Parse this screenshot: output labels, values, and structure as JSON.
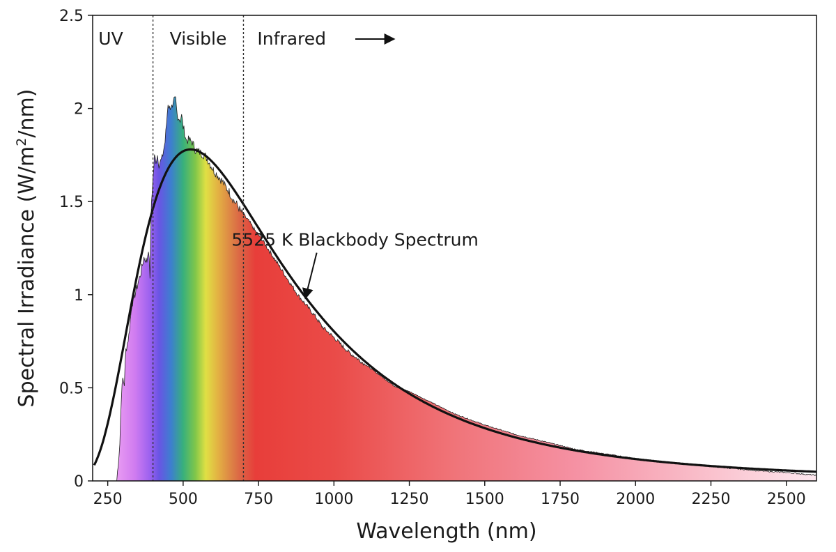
{
  "chart_data": {
    "type": "area",
    "xlabel": "Wavelength (nm)",
    "ylabel_main": "Spectral Irradiance (W/m",
    "ylabel_sup": "2",
    "ylabel_end": "/nm)",
    "xlim": [
      200,
      2600
    ],
    "ylim": [
      0,
      2.5
    ],
    "x_ticks": [
      250,
      500,
      750,
      1000,
      1250,
      1500,
      1750,
      2000,
      2250,
      2500
    ],
    "y_ticks": [
      0,
      0.5,
      1,
      1.5,
      2,
      2.5
    ],
    "y_tick_labels": [
      "0",
      "0.5",
      "1",
      "1.5",
      "2",
      "2.5"
    ],
    "regions": [
      {
        "label": "UV",
        "x": 260
      },
      {
        "label": "Visible",
        "x": 550
      },
      {
        "label": "Infrared",
        "x": 860
      }
    ],
    "dividers": [
      400,
      700
    ],
    "grid": false,
    "blackbody": {
      "label": "5525 K Blackbody Spectrum",
      "temperature_K": 5525,
      "peak_value": 1.78,
      "label_at": [
        1070,
        1.3
      ],
      "arrow_to": [
        905,
        0.98
      ]
    },
    "solar_spectrum": {
      "x": [
        280,
        290,
        295,
        300,
        305,
        310,
        320,
        330,
        340,
        350,
        360,
        370,
        380,
        385,
        390,
        395,
        400,
        405,
        410,
        415,
        420,
        430,
        440,
        445,
        450,
        455,
        460,
        465,
        470,
        475,
        480,
        485,
        490,
        495,
        500,
        505,
        510,
        520,
        530,
        540,
        550,
        560,
        570,
        580,
        590,
        600,
        610,
        620,
        630,
        640,
        650,
        660,
        670,
        680,
        690,
        700,
        720,
        740,
        760,
        780,
        800,
        820,
        840,
        860,
        880,
        900,
        920,
        940,
        960,
        980,
        1000,
        1050,
        1100,
        1150,
        1200,
        1250,
        1300,
        1350,
        1400,
        1450,
        1500,
        1600,
        1700,
        1800,
        1900,
        2000,
        2100,
        2200,
        2300,
        2400,
        2500,
        2600
      ],
      "y": [
        0.0,
        0.2,
        0.45,
        0.55,
        0.52,
        0.7,
        0.78,
        0.95,
        1.0,
        1.06,
        1.12,
        1.2,
        1.18,
        1.25,
        1.1,
        1.5,
        1.62,
        1.74,
        1.72,
        1.75,
        1.7,
        1.73,
        1.82,
        1.92,
        2.03,
        2.0,
        2.02,
        1.99,
        2.04,
        2.05,
        1.97,
        1.95,
        1.94,
        1.96,
        1.9,
        1.87,
        1.83,
        1.83,
        1.82,
        1.78,
        1.77,
        1.76,
        1.75,
        1.73,
        1.7,
        1.67,
        1.65,
        1.63,
        1.61,
        1.58,
        1.56,
        1.53,
        1.5,
        1.48,
        1.45,
        1.43,
        1.39,
        1.34,
        1.3,
        1.25,
        1.2,
        1.15,
        1.1,
        1.05,
        1.0,
        0.96,
        0.92,
        0.88,
        0.83,
        0.8,
        0.77,
        0.69,
        0.63,
        0.57,
        0.51,
        0.48,
        0.44,
        0.4,
        0.36,
        0.33,
        0.3,
        0.25,
        0.21,
        0.17,
        0.145,
        0.12,
        0.1,
        0.085,
        0.07,
        0.055,
        0.045,
        0.03
      ]
    },
    "colors": {
      "curve": "#111111",
      "spectrum_stops": [
        {
          "x": 280,
          "color": "#e99bf2"
        },
        {
          "x": 340,
          "color": "#d07cf0"
        },
        {
          "x": 390,
          "color": "#9b61ef"
        },
        {
          "x": 420,
          "color": "#6a54e4"
        },
        {
          "x": 460,
          "color": "#3d7fcf"
        },
        {
          "x": 500,
          "color": "#38b07c"
        },
        {
          "x": 540,
          "color": "#7fc64a"
        },
        {
          "x": 575,
          "color": "#e0e044"
        },
        {
          "x": 615,
          "color": "#e3b243"
        },
        {
          "x": 650,
          "color": "#de8c45"
        },
        {
          "x": 690,
          "color": "#db6445"
        },
        {
          "x": 740,
          "color": "#e83e3a"
        },
        {
          "x": 1000,
          "color": "#ea4b48"
        },
        {
          "x": 1400,
          "color": "#f07479"
        },
        {
          "x": 1800,
          "color": "#f591a3"
        },
        {
          "x": 2600,
          "color": "#fde7ee"
        }
      ]
    }
  }
}
